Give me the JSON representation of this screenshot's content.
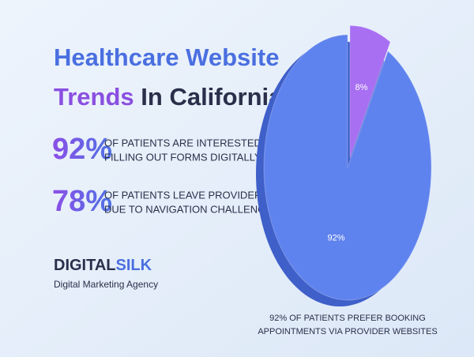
{
  "title": [
    "Healthcare Website",
    "Trends",
    "In California"
  ],
  "stats": [
    {
      "figure": "92%",
      "lines": [
        "OF PATIENTS ARE INTERESTED IN",
        "FILLING OUT FORMS DIGITALLY"
      ]
    },
    {
      "figure": "78%",
      "lines": [
        "OF PATIENTS LEAVE PROVIDERS",
        "DUE TO NAVIGATION CHALLENGES"
      ]
    }
  ],
  "brand": {
    "name": [
      "DIGITAL",
      "SILK"
    ],
    "tagline": "Digital Marketing Agency"
  },
  "chart_data": {
    "type": "pie",
    "values": [
      8,
      92
    ],
    "value_labels": [
      "8%",
      "92%"
    ],
    "colors": [
      "#a86ff2",
      "#5f83ee"
    ],
    "caption": [
      "92% OF PATIENTS PREFER BOOKING",
      "APPOINTMENTS VIA PROVIDER WEBSITES"
    ]
  }
}
